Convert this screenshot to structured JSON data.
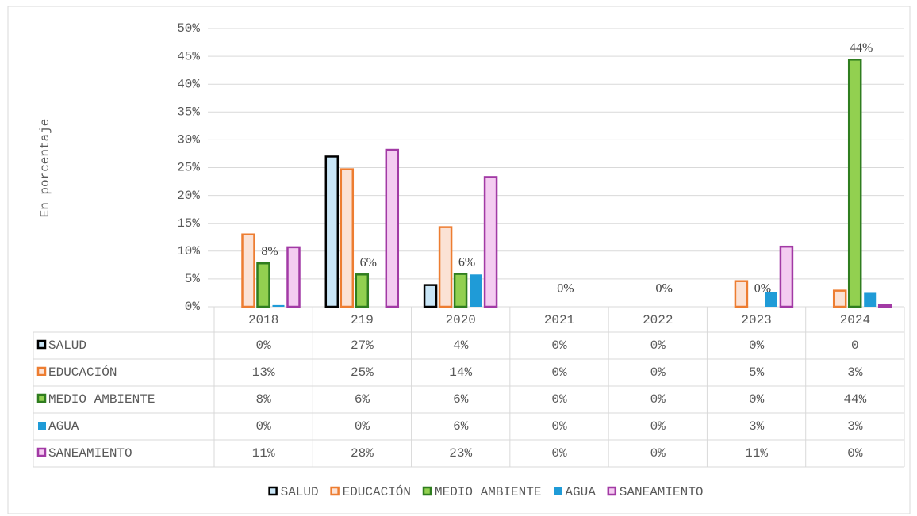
{
  "chart_data": {
    "type": "bar",
    "y_label": "En porcentaje",
    "categories": [
      "2018",
      "219",
      "2020",
      "2021",
      "2022",
      "2023",
      "2024"
    ],
    "ylim": [
      0,
      50
    ],
    "yticks": [
      {
        "value": 0,
        "label": "0%"
      },
      {
        "value": 5,
        "label": "5%"
      },
      {
        "value": 10,
        "label": "10%"
      },
      {
        "value": 15,
        "label": "15%"
      },
      {
        "value": 20,
        "label": "20%"
      },
      {
        "value": 25,
        "label": "25%"
      },
      {
        "value": 30,
        "label": "30%"
      },
      {
        "value": 35,
        "label": "35%"
      },
      {
        "value": 40,
        "label": "40%"
      },
      {
        "value": 45,
        "label": "45%"
      },
      {
        "value": 50,
        "label": "50%"
      }
    ],
    "grid": true,
    "series": [
      {
        "name": "SALUD",
        "color": "#c9e6f7",
        "stroke": "#000000",
        "values": [
          0,
          27,
          3.9,
          0,
          0,
          0,
          0
        ],
        "value_labels": [
          "0%",
          "27%",
          "4%",
          "0%",
          "0%",
          "0%",
          "0"
        ]
      },
      {
        "name": "EDUCACIÓN",
        "color": "#fbe2d5",
        "stroke": "#ed7d31",
        "values": [
          13,
          24.7,
          14.3,
          0,
          0,
          4.6,
          2.9
        ],
        "value_labels": [
          "13%",
          "25%",
          "14%",
          "0%",
          "0%",
          "5%",
          "3%"
        ]
      },
      {
        "name": "MEDIO AMBIENTE",
        "color": "#92d050",
        "stroke": "#2f7d1f",
        "values": [
          7.8,
          5.8,
          5.9,
          0,
          0,
          0,
          44.4
        ],
        "value_labels": [
          "8%",
          "6%",
          "6%",
          "0%",
          "0%",
          "0%",
          "44%"
        ]
      },
      {
        "name": "AGUA",
        "color": "#1f9bd7",
        "stroke": "none",
        "values": [
          0.3,
          0,
          5.8,
          0,
          0,
          2.7,
          2.5
        ],
        "value_labels": [
          "0%",
          "0%",
          "6%",
          "0%",
          "0%",
          "3%",
          "3%"
        ]
      },
      {
        "name": "SANEAMIENTO",
        "color": "#f4ccf1",
        "stroke": "#a23aa5",
        "values": [
          10.7,
          28.2,
          23.3,
          0,
          0,
          10.8,
          0.3
        ],
        "value_labels": [
          "11%",
          "28%",
          "23%",
          "0%",
          "0%",
          "11%",
          "0%"
        ]
      }
    ],
    "value_label_series": 2
  }
}
